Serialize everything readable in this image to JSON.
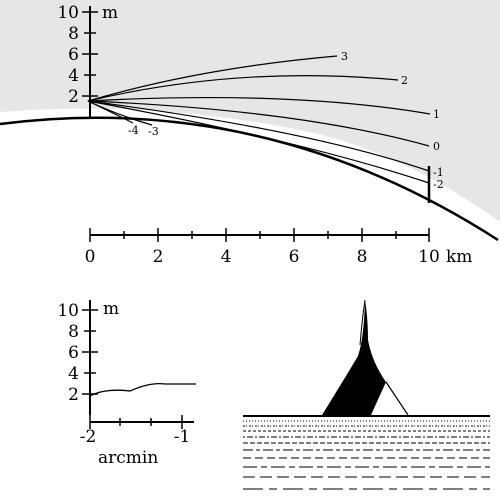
{
  "top_panel": {
    "height_axis": {
      "unit": "m",
      "ticks": [
        "10",
        "8",
        "6",
        "4",
        "2"
      ]
    },
    "distance_axis": {
      "ticks": [
        "0",
        "2",
        "4",
        "6",
        "8",
        "10"
      ],
      "unit": "km"
    },
    "ray_labels": [
      "3",
      "2",
      "1",
      "0",
      "-1",
      "-2",
      "-4",
      "-3"
    ]
  },
  "bottom_left": {
    "height_axis": {
      "unit": "m",
      "ticks": [
        "10",
        "8",
        "6",
        "4",
        "2"
      ]
    },
    "angle_axis": {
      "ticks": [
        "-2",
        "-1"
      ],
      "unit": "arcmin"
    }
  }
}
